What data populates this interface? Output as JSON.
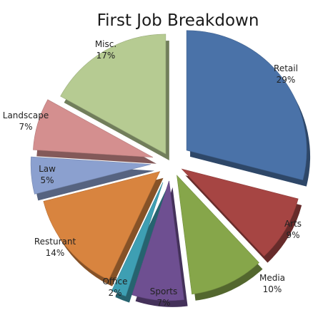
{
  "chart_data": {
    "type": "pie",
    "title": "First Job Breakdown",
    "categories": [
      "Retail",
      "Arts",
      "Media",
      "Sports",
      "Office",
      "Resturant",
      "Law",
      "Landscape",
      "Misc."
    ],
    "values": [
      29,
      9,
      10,
      7,
      2,
      14,
      5,
      7,
      17
    ],
    "labels": [
      "29%",
      "9%",
      "10%",
      "7%",
      "2%",
      "14%",
      "5%",
      "7%",
      "17%"
    ],
    "colors": [
      "#4a72a8",
      "#a64543",
      "#86a64a",
      "#6e4f91",
      "#3e9fb3",
      "#d8843f",
      "#8ba0cf",
      "#d48f8f",
      "#b6cb92"
    ],
    "exploded": true,
    "style": "3d"
  }
}
